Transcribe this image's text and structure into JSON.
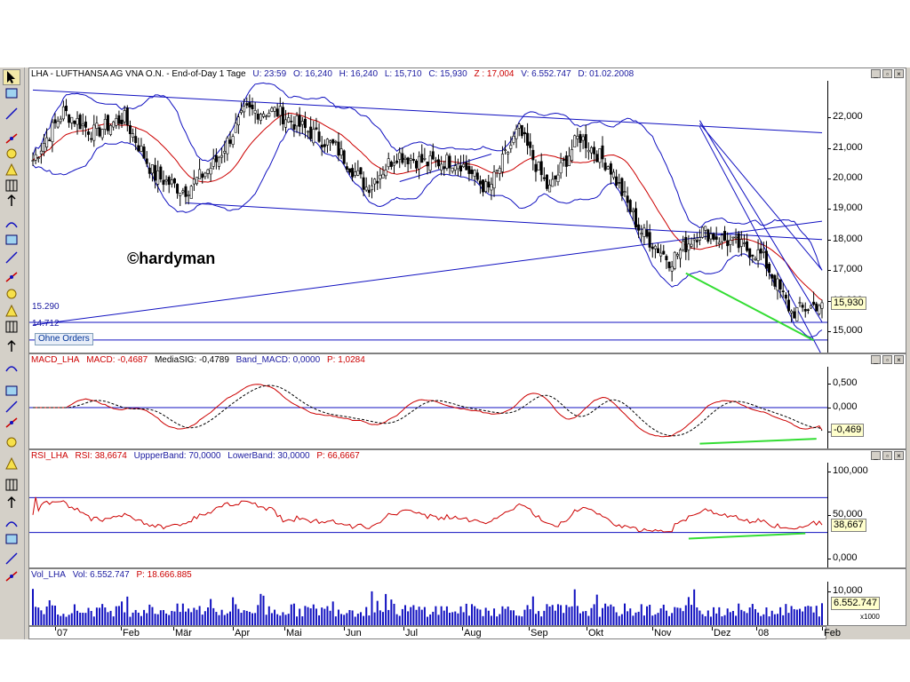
{
  "toolbar": {
    "tools": [
      "pointer-icon",
      "rectangle-icon",
      "window-icon",
      "line-icon",
      "trendline-icon",
      "ray-icon",
      "channel-icon",
      "fibonacci-icon",
      "vertical-line-icon",
      "crosshair-icon",
      "curve-icon",
      "square-icon",
      "ellipse-icon",
      "triangle-icon",
      "diamond-icon",
      "gann-icon",
      "grid-icon",
      "cycle-icon",
      "speedlines-icon",
      "arc-icon",
      "text-box-icon",
      "regression-icon",
      "arrow-icon",
      "percent-icon",
      "up-arrow-icon",
      "down-arrow-icon",
      "text-icon",
      "pencil-icon"
    ]
  },
  "price_panel": {
    "title_parts": [
      "LHA - LUFTHANSA AG VNA O.N. - End-of-Day 1 Tage",
      "U: 23:59",
      "O: 16,240",
      "H: 16,240",
      "L: 15,710",
      "C: 15,930"
    ],
    "z_part": "Z : 17,004",
    "v_part": "V: 6.552.747",
    "d_part": "D: 01.02.2008",
    "current": "15,930",
    "watermark": "©hardyman",
    "ohne_orders": "Ohne Orders",
    "level1_label": "15.290",
    "level2_label": "14.712",
    "ticks": [
      "22,000",
      "21,000",
      "20,000",
      "19,000",
      "18,000",
      "17,000",
      "16,000",
      "15,000"
    ]
  },
  "macd_panel": {
    "title_parts": [
      "MACD_LHA",
      "MACD: -0,4687",
      "MediaSIG: -0,4789",
      "Band_MACD: 0,0000",
      "P: 1,0284"
    ],
    "current": "-0,469",
    "ticks": [
      "0,500",
      "0,000",
      "-0,500"
    ]
  },
  "rsi_panel": {
    "title_parts": [
      "RSI_LHA",
      "RSI: 38,6674",
      "UppperBand: 70,0000",
      "LowerBand: 30,0000",
      "P: 66,6667"
    ],
    "current": "38,667",
    "ticks": [
      "100,000",
      "50,000",
      "0,000"
    ]
  },
  "vol_panel": {
    "title_parts": [
      "Vol_LHA",
      "Vol: 6.552.747",
      "P: 18.666.885"
    ],
    "current": "6.552.747",
    "ticks": [
      "10,000"
    ],
    "unit": "x1000"
  },
  "x_axis": {
    "months": [
      "07",
      "Feb",
      "Mär",
      "Apr",
      "Mai",
      "Jun",
      "Jul",
      "Aug",
      "Sep",
      "Okt",
      "Nov",
      "Dez",
      "08",
      "Feb"
    ]
  },
  "colors": {
    "price": "#000000",
    "ma": "#cc0000",
    "bands": "#1010c0",
    "trendlines": "#1010c0",
    "divergence": "#33dd33",
    "macd": "#cc0000",
    "signal": "#000000"
  },
  "chart_data": [
    {
      "type": "candlestick",
      "title": "LHA - LUFTHANSA AG VNA O.N. - End-of-Day 1 Tage",
      "x_range": [
        "2007-01",
        "2008-02"
      ],
      "ylim": [
        14.3,
        23.2
      ],
      "anchors": [
        {
          "x": "07",
          "close": 20.6
        },
        {
          "x": "Jan mid",
          "close": 22.2
        },
        {
          "x": "Feb",
          "close": 21.5
        },
        {
          "x": "Feb mid",
          "close": 22.0
        },
        {
          "x": "Mär",
          "close": 20.1
        },
        {
          "x": "Mär mid",
          "close": 19.6
        },
        {
          "x": "Apr",
          "close": 20.5
        },
        {
          "x": "Apr mid",
          "close": 22.2
        },
        {
          "x": "Mai",
          "close": 22.2
        },
        {
          "x": "Mai mid",
          "close": 21.6
        },
        {
          "x": "Jun",
          "close": 21.0
        },
        {
          "x": "Jun mid",
          "close": 19.7
        },
        {
          "x": "Jul",
          "close": 20.8
        },
        {
          "x": "Jul mid",
          "close": 20.5
        },
        {
          "x": "Aug",
          "close": 20.6
        },
        {
          "x": "Aug mid",
          "close": 19.6
        },
        {
          "x": "Sep",
          "close": 21.6
        },
        {
          "x": "Sep mid",
          "close": 19.6
        },
        {
          "x": "Okt",
          "close": 21.4
        },
        {
          "x": "Okt mid",
          "close": 20.4
        },
        {
          "x": "Nov",
          "close": 18.3
        },
        {
          "x": "Nov mid",
          "close": 17.3
        },
        {
          "x": "Dez",
          "close": 18.3
        },
        {
          "x": "Dez mid",
          "close": 17.9
        },
        {
          "x": "08",
          "close": 17.5
        },
        {
          "x": "Jan 08 mid",
          "close": 15.6
        },
        {
          "x": "Feb 08",
          "close": 15.93
        }
      ],
      "levels": [
        15.29,
        14.712
      ],
      "current": 15.93
    },
    {
      "type": "line",
      "title": "MACD_LHA",
      "ylim": [
        -0.85,
        0.85
      ],
      "series": [
        {
          "name": "MACD",
          "last": -0.4687
        },
        {
          "name": "MediaSIG",
          "last": -0.4789
        }
      ],
      "band": 0.0
    },
    {
      "type": "line",
      "title": "RSI_LHA",
      "ylim": [
        -10,
        110
      ],
      "series": [
        {
          "name": "RSI",
          "last": 38.6674
        }
      ],
      "upper_band": 70,
      "lower_band": 30
    },
    {
      "type": "bar",
      "title": "Vol_LHA",
      "unit": "x1000",
      "last": 6552.747
    }
  ]
}
